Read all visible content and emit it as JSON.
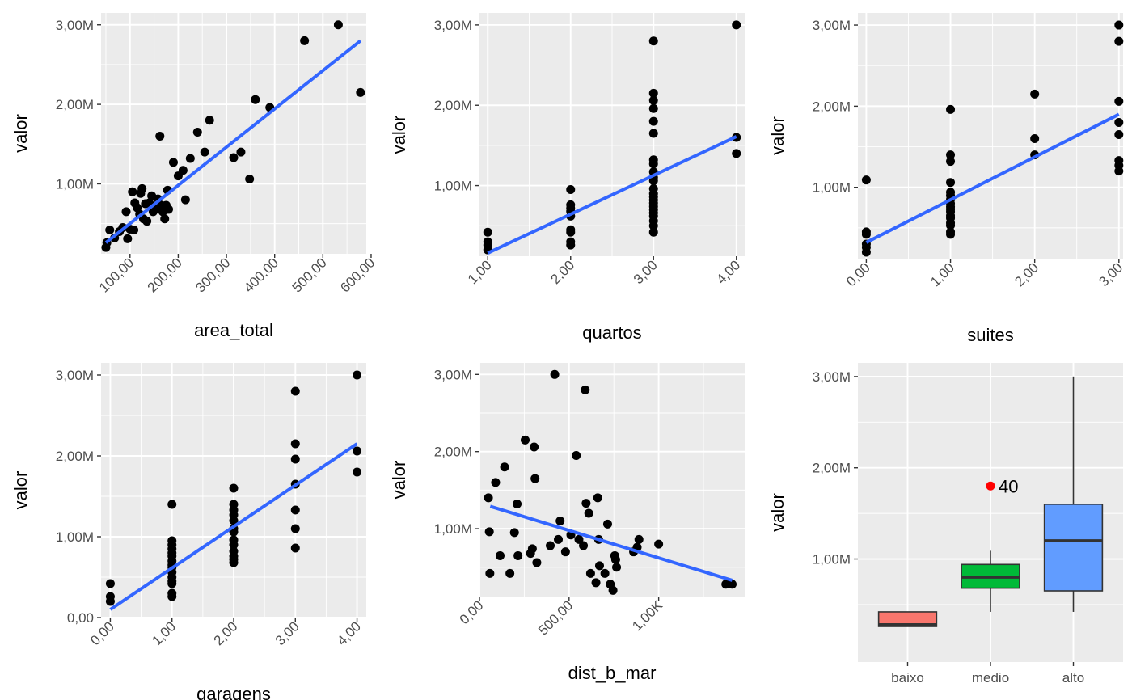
{
  "chart_data": [
    {
      "type": "scatter",
      "xlabel": "area_total",
      "ylabel": "valor",
      "xlim": [
        40,
        590
      ],
      "ylim": [
        120000,
        3150000
      ],
      "x_ticks": [
        100,
        200,
        300,
        400,
        500,
        600
      ],
      "x_tick_labels": [
        "100,00",
        "200,00",
        "300,00",
        "400,00",
        "500,00",
        "600,00"
      ],
      "y_ticks": [
        1000000,
        2000000,
        3000000
      ],
      "y_tick_labels": [
        "1,00M",
        "2,00M",
        "3,00M"
      ],
      "x_label_rotation": 45,
      "grid": true,
      "points": [
        [
          50,
          200000
        ],
        [
          52,
          260000
        ],
        [
          58,
          420000
        ],
        [
          68,
          320000
        ],
        [
          78,
          400000
        ],
        [
          85,
          450000
        ],
        [
          92,
          650000
        ],
        [
          95,
          310000
        ],
        [
          100,
          430000
        ],
        [
          105,
          900000
        ],
        [
          108,
          420000
        ],
        [
          110,
          760000
        ],
        [
          115,
          700000
        ],
        [
          120,
          620000
        ],
        [
          122,
          880000
        ],
        [
          125,
          940000
        ],
        [
          128,
          560000
        ],
        [
          132,
          750000
        ],
        [
          135,
          530000
        ],
        [
          140,
          760000
        ],
        [
          145,
          850000
        ],
        [
          148,
          650000
        ],
        [
          152,
          680000
        ],
        [
          155,
          720000
        ],
        [
          158,
          810000
        ],
        [
          160,
          700000
        ],
        [
          162,
          1600000
        ],
        [
          165,
          730000
        ],
        [
          168,
          650000
        ],
        [
          172,
          560000
        ],
        [
          175,
          730000
        ],
        [
          178,
          920000
        ],
        [
          180,
          680000
        ],
        [
          190,
          1270000
        ],
        [
          200,
          1100000
        ],
        [
          210,
          1170000
        ],
        [
          215,
          800000
        ],
        [
          225,
          1320000
        ],
        [
          240,
          1650000
        ],
        [
          255,
          1400000
        ],
        [
          265,
          1800000
        ],
        [
          315,
          1330000
        ],
        [
          330,
          1400000
        ],
        [
          348,
          1060000
        ],
        [
          360,
          2060000
        ],
        [
          390,
          1960000
        ],
        [
          462,
          2800000
        ],
        [
          532,
          3000000
        ],
        [
          578,
          2150000
        ]
      ],
      "fit_line": [
        [
          50,
          260000
        ],
        [
          578,
          2800000
        ]
      ]
    },
    {
      "type": "scatter",
      "xlabel": "quartos",
      "ylabel": "valor",
      "xlim": [
        0.9,
        4.1
      ],
      "ylim": [
        120000,
        3150000
      ],
      "x_ticks": [
        1,
        2,
        3,
        4
      ],
      "x_tick_labels": [
        "1,00",
        "2,00",
        "3,00",
        "4,00"
      ],
      "y_ticks": [
        1000000,
        2000000,
        3000000
      ],
      "y_tick_labels": [
        "1,00M",
        "2,00M",
        "3,00M"
      ],
      "x_label_rotation": 45,
      "grid": true,
      "points": [
        [
          1,
          200000
        ],
        [
          1,
          260000
        ],
        [
          1,
          300000
        ],
        [
          1,
          420000
        ],
        [
          2,
          260000
        ],
        [
          2,
          300000
        ],
        [
          2,
          420000
        ],
        [
          2,
          450000
        ],
        [
          2,
          620000
        ],
        [
          2,
          680000
        ],
        [
          2,
          720000
        ],
        [
          2,
          760000
        ],
        [
          2,
          950000
        ],
        [
          3,
          420000
        ],
        [
          3,
          500000
        ],
        [
          3,
          560000
        ],
        [
          3,
          620000
        ],
        [
          3,
          660000
        ],
        [
          3,
          700000
        ],
        [
          3,
          740000
        ],
        [
          3,
          780000
        ],
        [
          3,
          820000
        ],
        [
          3,
          860000
        ],
        [
          3,
          900000
        ],
        [
          3,
          960000
        ],
        [
          3,
          1060000
        ],
        [
          3,
          1100000
        ],
        [
          3,
          1170000
        ],
        [
          3,
          1270000
        ],
        [
          3,
          1320000
        ],
        [
          3,
          1650000
        ],
        [
          3,
          1800000
        ],
        [
          3,
          1960000
        ],
        [
          3,
          2060000
        ],
        [
          3,
          2150000
        ],
        [
          3,
          2800000
        ],
        [
          4,
          1400000
        ],
        [
          4,
          1600000
        ],
        [
          4,
          3000000
        ]
      ],
      "fit_line": [
        [
          1,
          160000
        ],
        [
          4,
          1610000
        ]
      ]
    },
    {
      "type": "scatter",
      "xlabel": "suites",
      "ylabel": "valor",
      "xlim": [
        -0.1,
        3.05
      ],
      "ylim": [
        120000,
        3150000
      ],
      "x_ticks": [
        0,
        1,
        2,
        3
      ],
      "x_tick_labels": [
        "0,00",
        "1,00",
        "2,00",
        "3,00"
      ],
      "y_ticks": [
        1000000,
        2000000,
        3000000
      ],
      "y_tick_labels": [
        "1,00M",
        "2,00M",
        "3,00M"
      ],
      "x_label_rotation": 45,
      "grid": true,
      "points": [
        [
          0,
          200000
        ],
        [
          0,
          260000
        ],
        [
          0,
          300000
        ],
        [
          0,
          420000
        ],
        [
          0,
          450000
        ],
        [
          0,
          1090000
        ],
        [
          1,
          420000
        ],
        [
          1,
          450000
        ],
        [
          1,
          530000
        ],
        [
          1,
          560000
        ],
        [
          1,
          620000
        ],
        [
          1,
          650000
        ],
        [
          1,
          700000
        ],
        [
          1,
          730000
        ],
        [
          1,
          760000
        ],
        [
          1,
          800000
        ],
        [
          1,
          850000
        ],
        [
          1,
          900000
        ],
        [
          1,
          940000
        ],
        [
          1,
          1060000
        ],
        [
          1,
          1320000
        ],
        [
          1,
          1400000
        ],
        [
          1,
          1960000
        ],
        [
          2,
          1400000
        ],
        [
          2,
          1600000
        ],
        [
          2,
          2150000
        ],
        [
          3,
          1200000
        ],
        [
          3,
          1270000
        ],
        [
          3,
          1330000
        ],
        [
          3,
          1650000
        ],
        [
          3,
          1800000
        ],
        [
          3,
          2060000
        ],
        [
          3,
          2800000
        ],
        [
          3,
          3000000
        ]
      ],
      "fit_line": [
        [
          0,
          320000
        ],
        [
          3,
          1900000
        ]
      ]
    },
    {
      "type": "scatter",
      "xlabel": "garagens",
      "ylabel": "valor",
      "xlim": [
        -0.15,
        4.15
      ],
      "ylim": [
        0,
        3150000
      ],
      "x_ticks": [
        0,
        1,
        2,
        3,
        4
      ],
      "x_tick_labels": [
        "0,00",
        "1,00",
        "2,00",
        "3,00",
        "4,00"
      ],
      "y_ticks": [
        0,
        1000000,
        2000000,
        3000000
      ],
      "y_tick_labels": [
        "0,00",
        "1,00M",
        "2,00M",
        "3,00M"
      ],
      "x_label_rotation": 45,
      "grid": true,
      "points": [
        [
          0,
          200000
        ],
        [
          0,
          260000
        ],
        [
          0,
          420000
        ],
        [
          1,
          260000
        ],
        [
          1,
          300000
        ],
        [
          1,
          420000
        ],
        [
          1,
          450000
        ],
        [
          1,
          500000
        ],
        [
          1,
          560000
        ],
        [
          1,
          620000
        ],
        [
          1,
          650000
        ],
        [
          1,
          700000
        ],
        [
          1,
          760000
        ],
        [
          1,
          800000
        ],
        [
          1,
          850000
        ],
        [
          1,
          900000
        ],
        [
          1,
          950000
        ],
        [
          1,
          1400000
        ],
        [
          2,
          680000
        ],
        [
          2,
          720000
        ],
        [
          2,
          760000
        ],
        [
          2,
          820000
        ],
        [
          2,
          900000
        ],
        [
          2,
          960000
        ],
        [
          2,
          1060000
        ],
        [
          2,
          1100000
        ],
        [
          2,
          1200000
        ],
        [
          2,
          1270000
        ],
        [
          2,
          1330000
        ],
        [
          2,
          1400000
        ],
        [
          2,
          1600000
        ],
        [
          3,
          860000
        ],
        [
          3,
          1100000
        ],
        [
          3,
          1330000
        ],
        [
          3,
          1650000
        ],
        [
          3,
          1960000
        ],
        [
          3,
          2150000
        ],
        [
          3,
          2800000
        ],
        [
          4,
          1800000
        ],
        [
          4,
          2060000
        ],
        [
          4,
          3000000
        ]
      ],
      "fit_line": [
        [
          0,
          100000
        ],
        [
          4,
          2150000
        ]
      ]
    },
    {
      "type": "scatter",
      "xlabel": "dist_b_mar",
      "ylabel": "valor",
      "xlim": [
        0,
        1480
      ],
      "ylim": [
        120000,
        3150000
      ],
      "x_ticks": [
        0,
        500,
        1000
      ],
      "x_tick_labels": [
        "0,00",
        "500,00",
        "1,00K"
      ],
      "y_ticks": [
        1000000,
        2000000,
        3000000
      ],
      "y_tick_labels": [
        "1,00M",
        "2,00M",
        "3,00M"
      ],
      "x_label_rotation": 45,
      "grid": true,
      "points": [
        [
          50,
          1400000
        ],
        [
          55,
          960000
        ],
        [
          58,
          420000
        ],
        [
          90,
          1600000
        ],
        [
          115,
          650000
        ],
        [
          140,
          1800000
        ],
        [
          170,
          420000
        ],
        [
          195,
          950000
        ],
        [
          210,
          1320000
        ],
        [
          215,
          650000
        ],
        [
          255,
          2150000
        ],
        [
          285,
          680000
        ],
        [
          295,
          740000
        ],
        [
          305,
          2060000
        ],
        [
          310,
          1650000
        ],
        [
          320,
          560000
        ],
        [
          395,
          780000
        ],
        [
          420,
          3000000
        ],
        [
          440,
          860000
        ],
        [
          450,
          1100000
        ],
        [
          480,
          700000
        ],
        [
          510,
          920000
        ],
        [
          540,
          1950000
        ],
        [
          555,
          860000
        ],
        [
          580,
          780000
        ],
        [
          590,
          2800000
        ],
        [
          595,
          1330000
        ],
        [
          610,
          1200000
        ],
        [
          620,
          420000
        ],
        [
          650,
          300000
        ],
        [
          660,
          1400000
        ],
        [
          665,
          860000
        ],
        [
          670,
          520000
        ],
        [
          700,
          420000
        ],
        [
          715,
          1060000
        ],
        [
          730,
          280000
        ],
        [
          745,
          200000
        ],
        [
          755,
          650000
        ],
        [
          760,
          600000
        ],
        [
          765,
          500000
        ],
        [
          860,
          700000
        ],
        [
          880,
          760000
        ],
        [
          890,
          860000
        ],
        [
          1000,
          800000
        ],
        [
          1375,
          280000
        ],
        [
          1410,
          280000
        ]
      ],
      "fit_line": [
        [
          60,
          1290000
        ],
        [
          1410,
          330000
        ]
      ]
    },
    {
      "type": "box",
      "xlabel": "",
      "ylabel": "valor",
      "ylim": [
        -130000,
        3150000
      ],
      "categories": [
        "baixo",
        "medio",
        "alto"
      ],
      "y_ticks": [
        1000000,
        2000000,
        3000000
      ],
      "y_tick_labels": [
        "1,00M",
        "2,00M",
        "3,00M"
      ],
      "grid": true,
      "boxes": [
        {
          "category": "baixo",
          "min": 260000,
          "q1": 260000,
          "median": 280000,
          "q3": 420000,
          "max": 420000,
          "fill": "#f8766d"
        },
        {
          "category": "medio",
          "min": 420000,
          "q1": 680000,
          "median": 800000,
          "q3": 940000,
          "max": 1090000,
          "fill": "#00ba38"
        },
        {
          "category": "alto",
          "min": 420000,
          "q1": 650000,
          "median": 1200000,
          "q3": 1600000,
          "max": 3000000,
          "fill": "#619cff"
        }
      ],
      "outliers": [
        {
          "category": "medio",
          "value": 1800000,
          "label": "40",
          "color": "#ff0000"
        }
      ]
    }
  ]
}
